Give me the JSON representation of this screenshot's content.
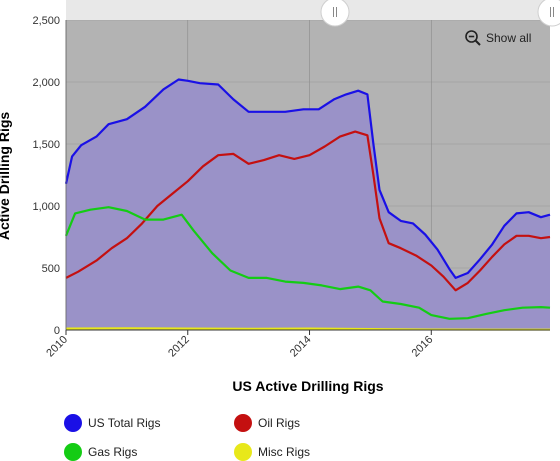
{
  "toolbar": {
    "show_all_label": "Show all",
    "zoom_icon": "zoom-out-icon"
  },
  "colors": {
    "plot_background": "#b3b3b3",
    "area_fill": "#9a92c8",
    "us_total": "#1a10e6",
    "oil": "#c41010",
    "gas": "#14cc14",
    "misc": "#e8e81a",
    "scrollbar": "#e8e8e8"
  },
  "chart_data": {
    "type": "line",
    "title": "",
    "xlabel": "US Active Drilling Rigs",
    "ylabel": "Active Drilling Rigs",
    "xlim": [
      2010.0,
      2017.95
    ],
    "ylim": [
      0,
      2500
    ],
    "x_ticks": [
      "2010",
      "2012",
      "2014",
      "2016"
    ],
    "y_ticks": [
      "0",
      "500",
      "1,000",
      "1,500",
      "2,000",
      "2,500"
    ],
    "grid": true,
    "legend_position": "bottom",
    "series": [
      {
        "name": "US Total Rigs",
        "color": "#1a10e6",
        "filled": true,
        "x": [
          2010.0,
          2010.1,
          2010.25,
          2010.5,
          2010.7,
          2011.0,
          2011.3,
          2011.6,
          2011.85,
          2012.0,
          2012.2,
          2012.5,
          2012.75,
          2013.0,
          2013.3,
          2013.6,
          2013.9,
          2014.15,
          2014.4,
          2014.6,
          2014.8,
          2014.95,
          2015.05,
          2015.15,
          2015.3,
          2015.5,
          2015.7,
          2015.9,
          2016.1,
          2016.3,
          2016.4,
          2016.6,
          2016.8,
          2017.0,
          2017.2,
          2017.4,
          2017.6,
          2017.8,
          2017.95
        ],
        "values": [
          1180,
          1400,
          1490,
          1560,
          1660,
          1700,
          1800,
          1940,
          2020,
          2010,
          1990,
          1980,
          1860,
          1760,
          1760,
          1760,
          1780,
          1780,
          1860,
          1900,
          1930,
          1900,
          1500,
          1130,
          950,
          880,
          860,
          770,
          650,
          490,
          420,
          460,
          570,
          690,
          840,
          940,
          950,
          910,
          930
        ]
      },
      {
        "name": "Oil Rigs",
        "color": "#c41010",
        "filled": false,
        "x": [
          2010.0,
          2010.2,
          2010.5,
          2010.75,
          2011.0,
          2011.25,
          2011.5,
          2011.75,
          2012.0,
          2012.25,
          2012.5,
          2012.75,
          2013.0,
          2013.25,
          2013.5,
          2013.75,
          2014.0,
          2014.25,
          2014.5,
          2014.75,
          2014.95,
          2015.05,
          2015.15,
          2015.3,
          2015.5,
          2015.75,
          2016.0,
          2016.2,
          2016.4,
          2016.6,
          2016.8,
          2017.0,
          2017.2,
          2017.4,
          2017.6,
          2017.8,
          2017.95
        ],
        "values": [
          420,
          470,
          560,
          660,
          740,
          860,
          1000,
          1100,
          1200,
          1320,
          1410,
          1420,
          1340,
          1370,
          1410,
          1380,
          1410,
          1480,
          1560,
          1600,
          1570,
          1250,
          900,
          700,
          660,
          600,
          520,
          430,
          320,
          380,
          480,
          590,
          690,
          760,
          760,
          740,
          750
        ]
      },
      {
        "name": "Gas Rigs",
        "color": "#14cc14",
        "filled": false,
        "x": [
          2010.0,
          2010.15,
          2010.4,
          2010.7,
          2011.0,
          2011.3,
          2011.6,
          2011.9,
          2012.1,
          2012.4,
          2012.7,
          2013.0,
          2013.3,
          2013.6,
          2013.9,
          2014.2,
          2014.5,
          2014.8,
          2015.0,
          2015.2,
          2015.5,
          2015.8,
          2016.0,
          2016.3,
          2016.6,
          2016.9,
          2017.2,
          2017.5,
          2017.8,
          2017.95
        ],
        "values": [
          760,
          940,
          970,
          990,
          960,
          890,
          890,
          930,
          800,
          620,
          480,
          420,
          420,
          390,
          380,
          360,
          330,
          350,
          320,
          230,
          210,
          180,
          120,
          90,
          95,
          130,
          160,
          180,
          185,
          180
        ]
      },
      {
        "name": "Misc Rigs",
        "color": "#e8e81a",
        "filled": false,
        "x": [
          2010.0,
          2011.0,
          2012.0,
          2013.0,
          2014.0,
          2015.0,
          2016.0,
          2017.0,
          2017.95
        ],
        "values": [
          12,
          14,
          12,
          10,
          12,
          8,
          4,
          3,
          3
        ]
      }
    ]
  }
}
